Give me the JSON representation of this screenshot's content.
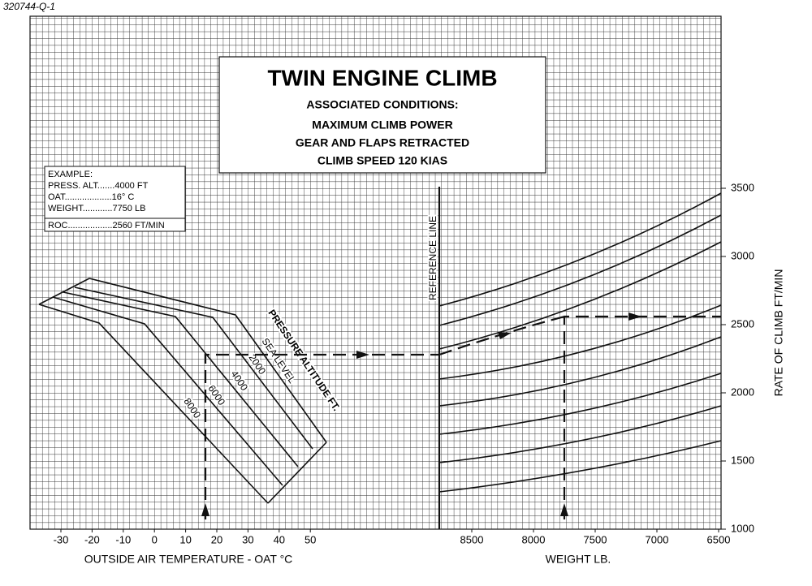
{
  "chart_data": {
    "type": "nomogram",
    "figure_id": "320744-Q-1",
    "title": "TWIN ENGINE CLIMB",
    "conditions_title": "ASSOCIATED CONDITIONS:",
    "conditions": [
      "MAXIMUM CLIMB POWER",
      "GEAR AND FLAPS RETRACTED",
      "CLIMB SPEED 120 KIAS"
    ],
    "example": {
      "heading": "EXAMPLE:",
      "lines": [
        "PRESS. ALT.......4000 FT",
        "OAT...................16° C",
        "WEIGHT............7750 LB"
      ],
      "result": "ROC..................2560 FT/MIN"
    },
    "altitude_title": "PRESSURE ALTITUDE FT.",
    "altitude_labels": [
      "SEA LEVEL",
      "2000",
      "4000",
      "6000",
      "8000"
    ],
    "reference_label": "REFERENCE LINE",
    "xlabel": "OUTSIDE AIR TEMPERATURE - OAT °C",
    "xlim": [
      -40,
      50
    ],
    "xticks": [
      -30,
      -20,
      -10,
      0,
      10,
      20,
      30,
      40,
      50
    ],
    "x2label": "WEIGHT LB.",
    "x2lim": [
      8750,
      6500
    ],
    "x2ticks": [
      8500,
      8000,
      7500,
      7000,
      6500
    ],
    "ylabel": "RATE OF CLIMB FT/MIN",
    "ylim": [
      1000,
      3500
    ],
    "yticks": [
      1000,
      1500,
      2000,
      2500,
      3000,
      3500
    ],
    "grid": true
  }
}
